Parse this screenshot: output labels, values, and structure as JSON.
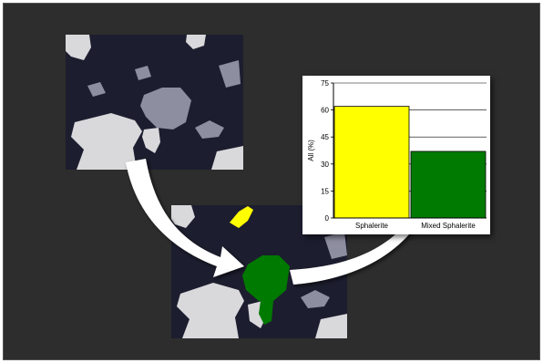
{
  "colors": {
    "background": "#2d2d2d",
    "grain_dark": "#1c1d2e",
    "grain_light": "#d9d9dc",
    "grain_gray": "#8e8ea1",
    "sphalerite": "#ffff00",
    "mixed_sphalerite": "#007a00",
    "arrow": "#ffffff"
  },
  "images": {
    "original": {
      "name": "original-micrograph"
    },
    "classified": {
      "name": "classified-micrograph"
    }
  },
  "chart_data": {
    "type": "bar",
    "categories": [
      "Sphalerite",
      "Mixed Sphalerite"
    ],
    "values": [
      62,
      37
    ],
    "colors": [
      "#ffff00",
      "#007a00"
    ],
    "ylabel": "All (%)",
    "ylim": [
      0,
      75
    ],
    "yticks": [
      "0",
      "15",
      "30",
      "45",
      "60",
      "75"
    ],
    "grid": true,
    "legend": "none"
  }
}
